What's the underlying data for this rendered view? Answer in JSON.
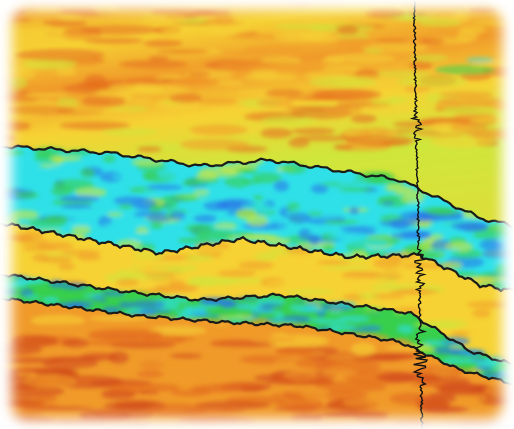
{
  "colors": {
    "background": "#ffffff",
    "deep_red": "#d04a1a",
    "red_orange": "#e36a1e",
    "orange": "#f09a2a",
    "yellow": "#f6d234",
    "yellow_green": "#cfe63b",
    "green": "#37cf4c",
    "cyan": "#2fe0e8",
    "blue": "#2a78e8",
    "horizon_line": "#1a1a1a",
    "well_trace": "#111111"
  },
  "layers": [
    {
      "name": "upper-warm-zone",
      "colors": [
        "orange",
        "yellow"
      ]
    },
    {
      "name": "upper-cool-band",
      "colors": [
        "cyan",
        "green",
        "blue"
      ]
    },
    {
      "name": "middle-warm-band",
      "colors": [
        "yellow",
        "orange"
      ]
    },
    {
      "name": "lower-cool-band",
      "colors": [
        "cyan",
        "green",
        "blue"
      ]
    },
    {
      "name": "lower-warm-zone",
      "colors": [
        "red_orange",
        "deep_red"
      ]
    }
  ],
  "horizons": [
    "horizon-1",
    "horizon-2",
    "horizon-3",
    "horizon-4"
  ],
  "well": {
    "name": "well-log-trace"
  }
}
